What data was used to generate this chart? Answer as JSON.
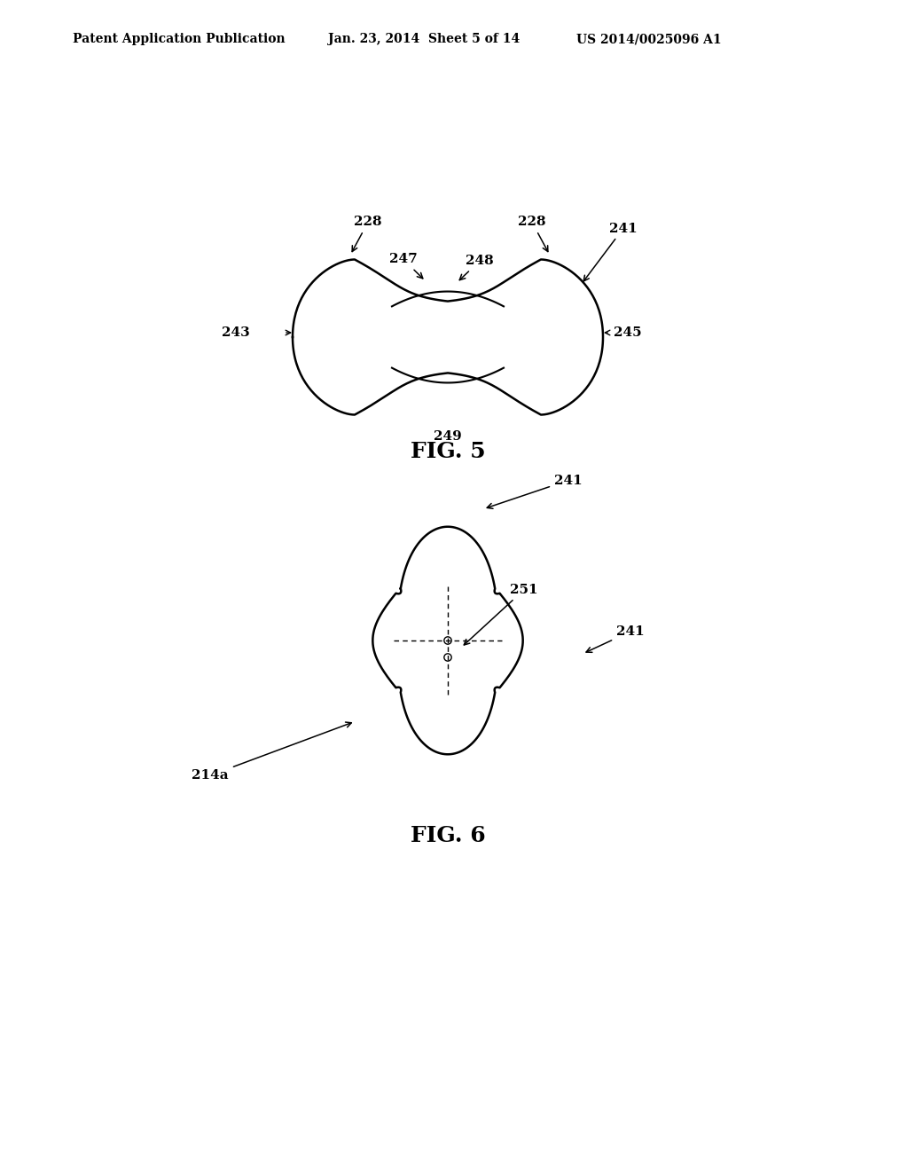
{
  "bg_color": "#ffffff",
  "line_color": "#000000",
  "header_left": "Patent Application Publication",
  "header_mid": "Jan. 23, 2014  Sheet 5 of 14",
  "header_right": "US 2014/0025096 A1",
  "fig5_label": "FIG. 5",
  "fig6_label": "FIG. 6"
}
